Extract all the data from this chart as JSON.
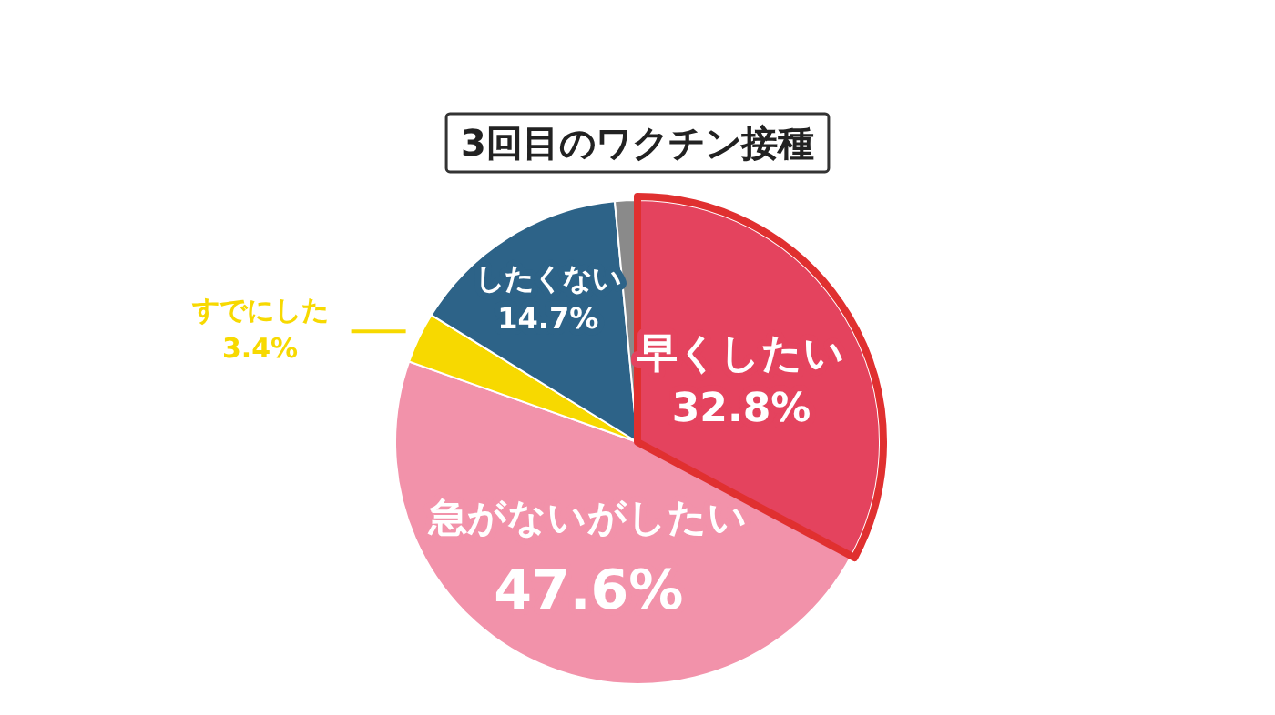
{
  "chart_data": {
    "type": "pie",
    "title": "3回目のワクチン接種",
    "categories": [
      "早くしたい",
      "急がないがしたい",
      "すでにした",
      "したくない",
      null
    ],
    "values": [
      32.8,
      47.6,
      3.4,
      14.7,
      1.5
    ],
    "colors": [
      "#e4435e",
      "#f292aa",
      "#f7d900",
      "#2d6388",
      "#8a8a8a"
    ],
    "value_labels": [
      "32.8%",
      "47.6%",
      "3.4%",
      "14.7%",
      null
    ]
  }
}
